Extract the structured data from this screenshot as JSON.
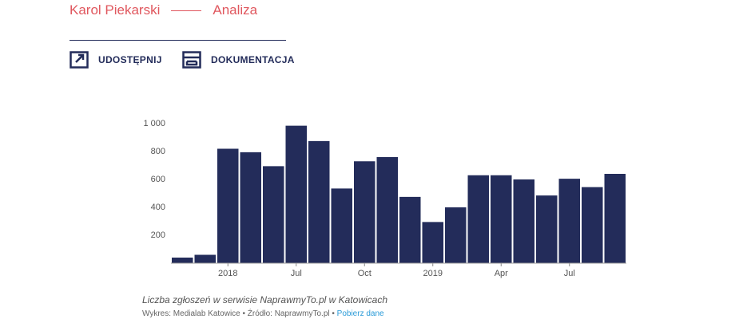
{
  "header": {
    "author": "Karol Piekarski",
    "section": "Analiza"
  },
  "actions": [
    {
      "label": "UDOSTĘPNIJ"
    },
    {
      "label": "DOKUMENTACJA"
    }
  ],
  "chart_data": {
    "type": "bar",
    "categories": [
      null,
      null,
      "2018",
      null,
      null,
      "Jul",
      null,
      null,
      "Oct",
      null,
      null,
      "2019",
      null,
      null,
      "Apr",
      null,
      null,
      "Jul",
      null,
      null
    ],
    "values": [
      40,
      60,
      820,
      795,
      695,
      985,
      875,
      535,
      730,
      760,
      475,
      295,
      400,
      630,
      630,
      600,
      485,
      605,
      545,
      640
    ],
    "color": "#232c5a",
    "ylim": [
      0,
      1000
    ],
    "yticks": [
      200,
      400,
      600,
      800,
      {
        "value": 1000,
        "label": "1 000"
      }
    ],
    "grid": false,
    "caption": "Liczba zgłoszeń w serwisie NaprawmyTo.pl w Katowicach"
  },
  "footer": {
    "credit": "Wykres: Medialab Katowice • Źródło: NaprawmyTo.pl •",
    "link": "Pobierz dane"
  }
}
